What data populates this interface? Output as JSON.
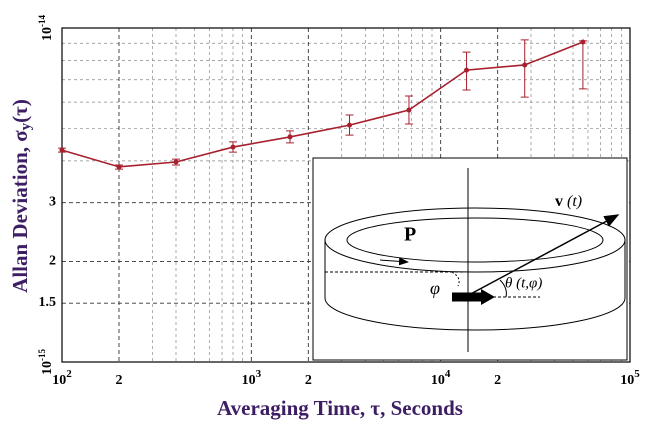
{
  "chart_data": {
    "type": "line",
    "x_label": "Averaging Time, τ, Seconds",
    "y_label": "Allan Deviation, σ",
    "y_label_sub": "y",
    "y_label_end": "(τ)",
    "x": [
      100,
      200,
      400,
      800,
      1600,
      3300,
      6800,
      13700,
      27800,
      56400
    ],
    "series": [
      {
        "color": "#a8202e",
        "values": [
          4.31e-15,
          3.84e-15,
          3.97e-15,
          4.4e-15,
          4.72e-15,
          5.12e-15,
          5.68e-15,
          7.48e-15,
          7.75e-15,
          9.08e-15
        ],
        "lower": [
          4.25e-15,
          3.78e-15,
          3.89e-15,
          4.25e-15,
          4.53e-15,
          4.78e-15,
          5.16e-15,
          6.52e-15,
          6.21e-15,
          6.57e-15
        ],
        "upper": [
          4.37e-15,
          3.89e-15,
          4.05e-15,
          4.56e-15,
          4.92e-15,
          5.49e-15,
          6.26e-15,
          8.47e-15,
          9.21e-15,
          9.15e-15
        ]
      }
    ],
    "x_log": true,
    "y_log": true,
    "xlim": [
      100,
      100000
    ],
    "ylim": [
      1e-15,
      1e-14
    ],
    "xticks": [
      {
        "value": 100,
        "label": "10",
        "sup": "2"
      },
      {
        "value": 200,
        "label": "2"
      },
      {
        "value": 1000,
        "label": "10",
        "sup": "3"
      },
      {
        "value": 2000,
        "label": "2"
      },
      {
        "value": 10000,
        "label": "10",
        "sup": "4"
      },
      {
        "value": 20000,
        "label": "2"
      },
      {
        "value": 100000,
        "label": "10",
        "sup": "5"
      }
    ],
    "yticks": [
      {
        "value": 1e-15,
        "label": "10",
        "sup": "-15"
      },
      {
        "value": 1.5e-15,
        "label": "1.5"
      },
      {
        "value": 2e-15,
        "label": "2"
      },
      {
        "value": 3e-15,
        "label": "3"
      },
      {
        "value": 1e-14,
        "label": "10",
        "sup": "-14"
      }
    ],
    "minor_xticks": [
      300,
      400,
      500,
      600,
      700,
      800,
      900,
      3000,
      4000,
      5000,
      6000,
      7000,
      8000,
      9000,
      30000,
      40000,
      50000,
      60000,
      70000,
      80000,
      90000
    ],
    "minor_yticks": [
      4e-15,
      5e-15,
      6e-15,
      7e-15,
      8e-15,
      9e-15
    ],
    "grid": true,
    "inset": {
      "p": "P",
      "v": "v",
      "v_arg": "(t)",
      "phi": "φ",
      "theta": "θ (t,φ)"
    }
  }
}
